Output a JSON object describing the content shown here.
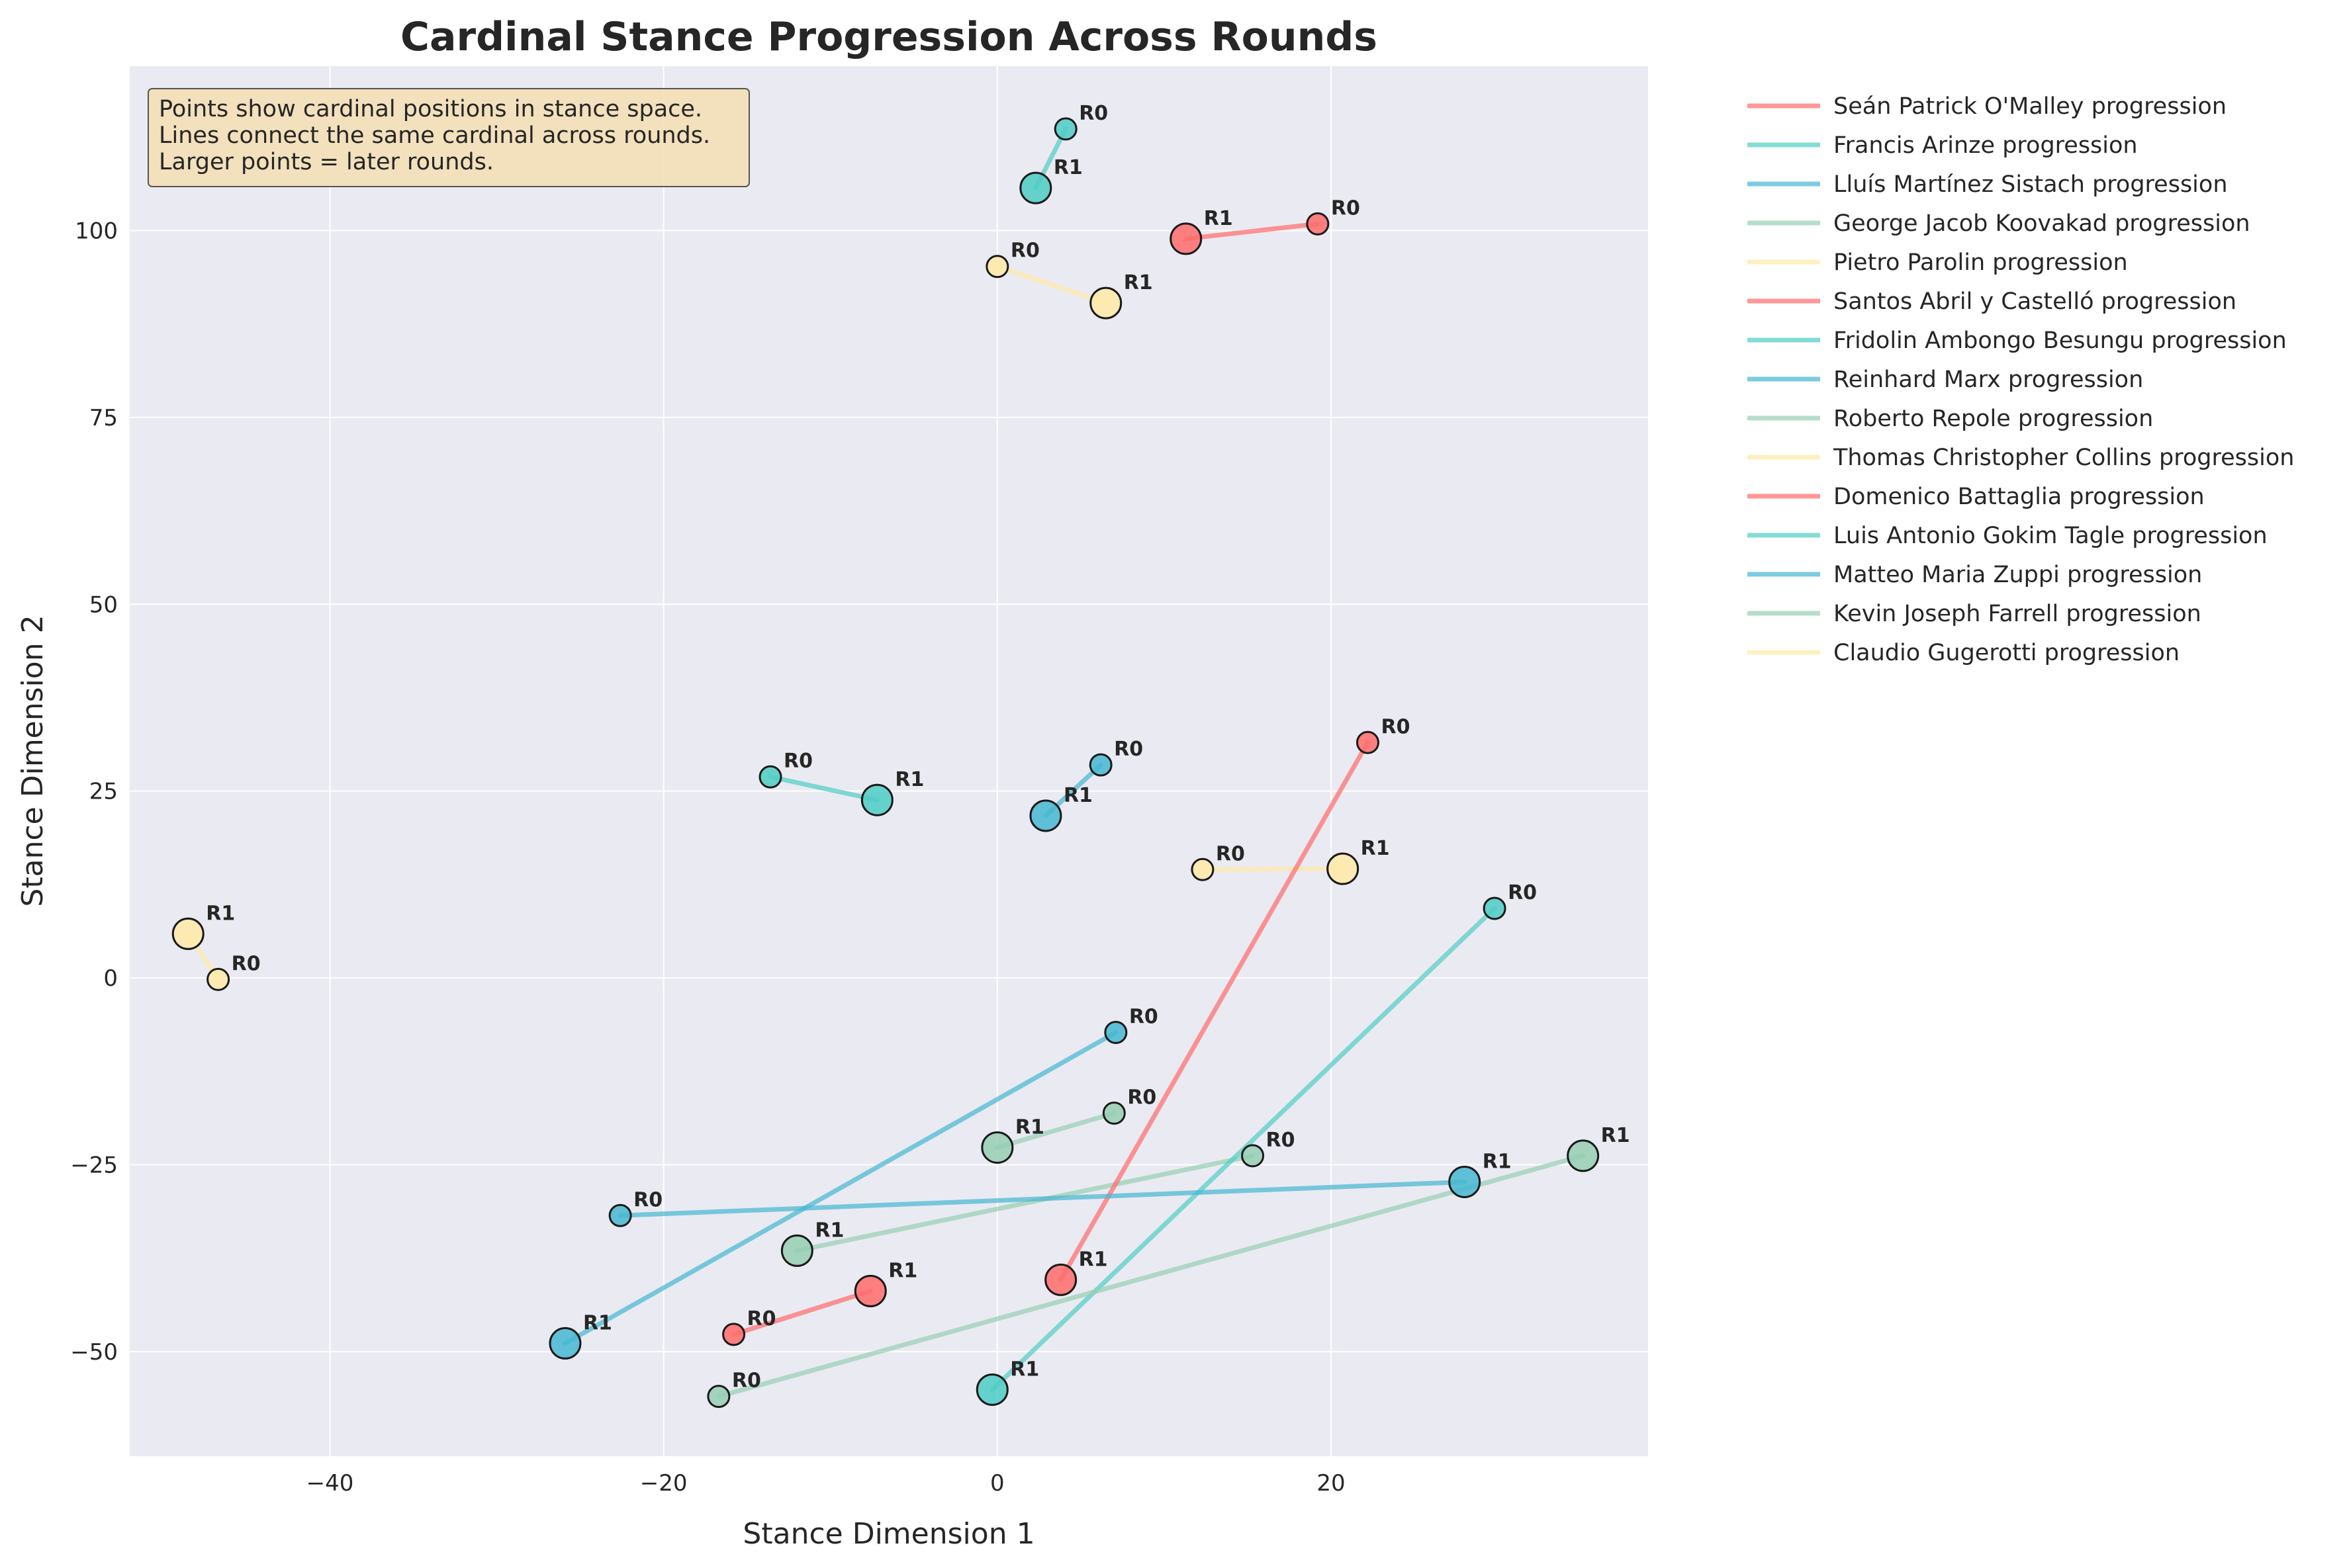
{
  "chart_data": {
    "type": "scatter",
    "title": "Cardinal Stance Progression Across Rounds",
    "xlabel": "Stance Dimension 1",
    "ylabel": "Stance Dimension 2",
    "xlim": [
      -52,
      39
    ],
    "ylim": [
      -64,
      122
    ],
    "xticks": [
      -40,
      -20,
      0,
      20
    ],
    "yticks": [
      -50,
      -25,
      0,
      25,
      50,
      75,
      100
    ],
    "grid": true,
    "legend_position": "outside-right",
    "annotation": [
      "Points show cardinal positions in stance space.",
      "Lines connect the same cardinal across rounds.",
      "Larger points = later rounds."
    ],
    "series": [
      {
        "name": "Seán Patrick O'Malley progression",
        "color": "#ff6b6b",
        "points": [
          {
            "round": "R0",
            "x": 19.2,
            "y": 100.9
          },
          {
            "round": "R1",
            "x": 11.3,
            "y": 98.9
          }
        ]
      },
      {
        "name": "Francis Arinze progression",
        "color": "#4ecdc4",
        "points": [
          {
            "round": "R0",
            "x": 4.1,
            "y": 113.6
          },
          {
            "round": "R1",
            "x": 2.3,
            "y": 105.7
          }
        ]
      },
      {
        "name": "Lluís Martínez Sistach progression",
        "color": "#45b7d1",
        "points": [
          {
            "round": "R0",
            "x": 7.1,
            "y": -7.3
          },
          {
            "round": "R1",
            "x": -25.9,
            "y": -48.9
          }
        ]
      },
      {
        "name": "George Jacob Koovakad progression",
        "color": "#96ceb4",
        "points": [
          {
            "round": "R0",
            "x": 15.3,
            "y": -23.8
          },
          {
            "round": "R1",
            "x": -12.0,
            "y": -36.5
          }
        ]
      },
      {
        "name": "Pietro Parolin progression",
        "color": "#ffeaa7",
        "points": [
          {
            "round": "R0",
            "x": 0.0,
            "y": 95.2
          },
          {
            "round": "R1",
            "x": 6.5,
            "y": 90.3
          }
        ]
      },
      {
        "name": "Santos Abril y Castelló progression",
        "color": "#ff6b6b",
        "points": [
          {
            "round": "R0",
            "x": -15.8,
            "y": -47.7
          },
          {
            "round": "R1",
            "x": -7.6,
            "y": -41.9
          }
        ]
      },
      {
        "name": "Fridolin Ambongo Besungu progression",
        "color": "#4ecdc4",
        "points": [
          {
            "round": "R0",
            "x": -13.6,
            "y": 26.9
          },
          {
            "round": "R1",
            "x": -7.2,
            "y": 23.8
          }
        ]
      },
      {
        "name": "Reinhard Marx progression",
        "color": "#45b7d1",
        "points": [
          {
            "round": "R0",
            "x": 6.2,
            "y": 28.5
          },
          {
            "round": "R1",
            "x": 2.9,
            "y": 21.7
          }
        ]
      },
      {
        "name": "Roberto Repole progression",
        "color": "#96ceb4",
        "points": [
          {
            "round": "R0",
            "x": 7.0,
            "y": -18.1
          },
          {
            "round": "R1",
            "x": 0.0,
            "y": -22.7
          }
        ]
      },
      {
        "name": "Thomas Christopher Collins progression",
        "color": "#ffeaa7",
        "points": [
          {
            "round": "R0",
            "x": 12.3,
            "y": 14.5
          },
          {
            "round": "R1",
            "x": 20.7,
            "y": 14.6
          }
        ]
      },
      {
        "name": "Domenico Battaglia progression",
        "color": "#ff6b6b",
        "points": [
          {
            "round": "R0",
            "x": 22.2,
            "y": 31.5
          },
          {
            "round": "R1",
            "x": 3.8,
            "y": -40.4
          }
        ]
      },
      {
        "name": "Luis Antonio Gokim Tagle progression",
        "color": "#4ecdc4",
        "points": [
          {
            "round": "R0",
            "x": 29.8,
            "y": 9.3
          },
          {
            "round": "R1",
            "x": -0.3,
            "y": -55.1
          }
        ]
      },
      {
        "name": "Matteo Maria Zuppi progression",
        "color": "#45b7d1",
        "points": [
          {
            "round": "R0",
            "x": -22.6,
            "y": -31.8
          },
          {
            "round": "R1",
            "x": 28.0,
            "y": -27.3
          }
        ]
      },
      {
        "name": "Kevin Joseph Farrell progression",
        "color": "#96ceb4",
        "points": [
          {
            "round": "R0",
            "x": -16.7,
            "y": -56.0
          },
          {
            "round": "R1",
            "x": 35.1,
            "y": -23.8
          }
        ]
      },
      {
        "name": "Claudio Gugerotti progression",
        "color": "#ffeaa7",
        "points": [
          {
            "round": "R0",
            "x": -46.7,
            "y": -0.2
          },
          {
            "round": "R1",
            "x": -48.5,
            "y": 5.9
          }
        ]
      }
    ]
  }
}
